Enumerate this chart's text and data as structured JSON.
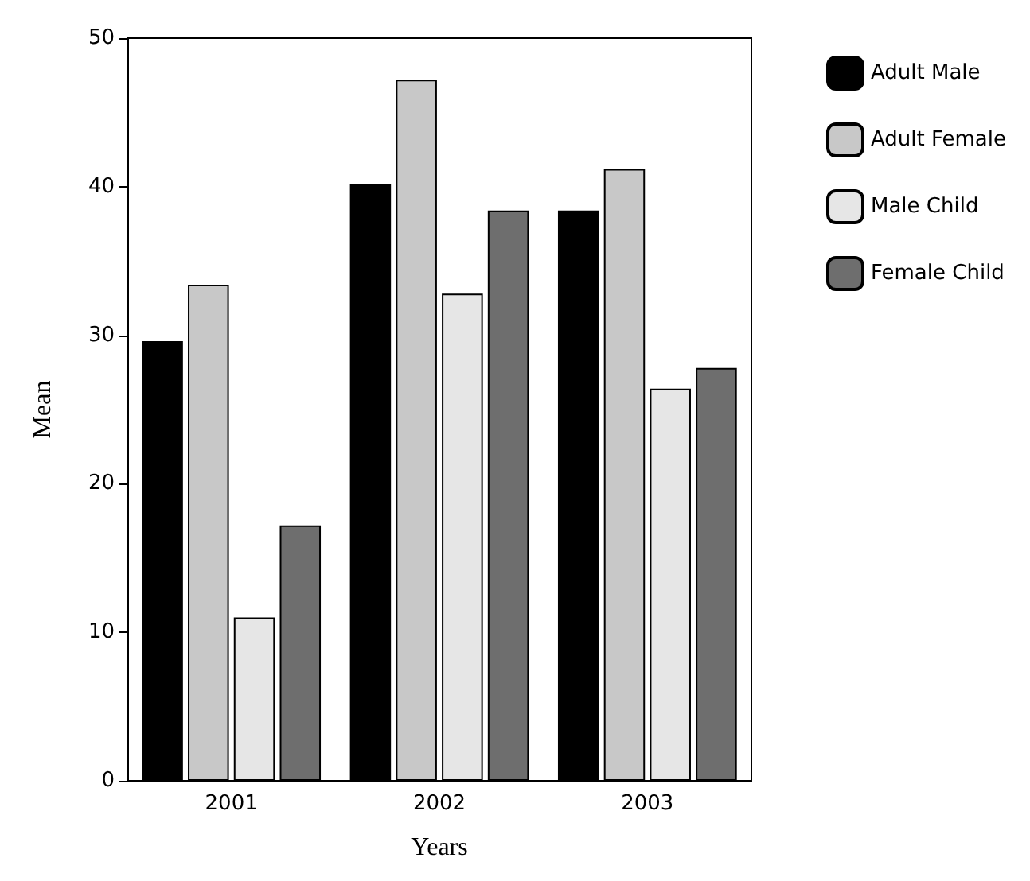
{
  "chart_data": {
    "type": "bar",
    "xlabel": "Years",
    "ylabel": "Mean",
    "categories": [
      "2001",
      "2002",
      "2003"
    ],
    "series": [
      {
        "name": "Adult Male",
        "color": "#000000",
        "values": [
          29.6,
          40.2,
          38.4
        ]
      },
      {
        "name": "Adult Female",
        "color": "#c8c8c8",
        "values": [
          33.4,
          47.2,
          41.2
        ]
      },
      {
        "name": "Male Child",
        "color": "#e6e6e6",
        "values": [
          11.0,
          32.8,
          26.4
        ]
      },
      {
        "name": "Female Child",
        "color": "#6e6e6e",
        "values": [
          17.2,
          38.4,
          27.8
        ]
      }
    ],
    "ylim": [
      0,
      50
    ],
    "yticks": [
      0,
      10,
      20,
      30,
      40,
      50
    ],
    "grid": false,
    "legend": "right"
  }
}
